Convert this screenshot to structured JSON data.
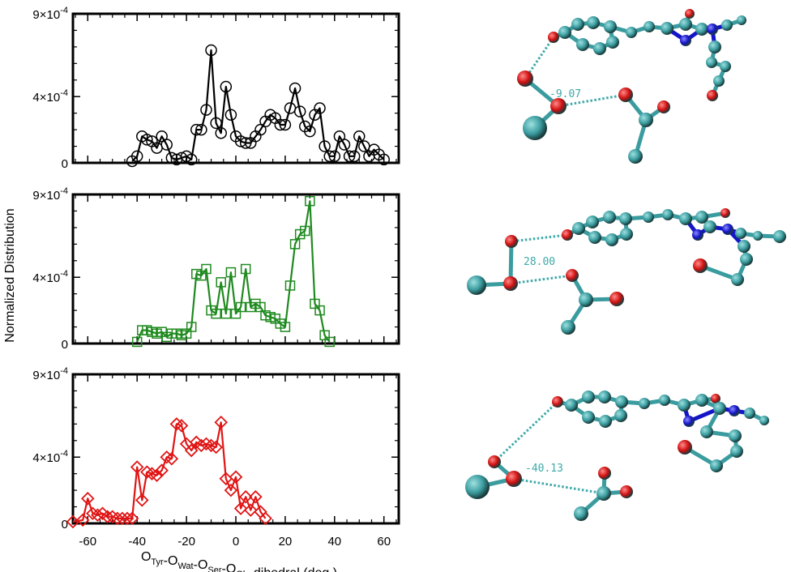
{
  "chart_data": {
    "type": "line",
    "ylabel": "Normalized Distribution",
    "xlabel": {
      "parts": [
        {
          "text": "O",
          "sub": "Tyr"
        },
        {
          "text": "-O",
          "sub": "Wat"
        },
        {
          "text": "-O",
          "sub": "Ser"
        },
        {
          "text": "-O",
          "sub": "Glu"
        },
        {
          "text": " dihedral (deg.)",
          "sub": ""
        }
      ]
    },
    "xlim": [
      -66,
      66
    ],
    "x_ticks": [
      "-60",
      "-40",
      "-20",
      "0",
      "20",
      "40",
      "60"
    ],
    "x_tick_values": [
      -60,
      -40,
      -20,
      0,
      20,
      40,
      60
    ],
    "ylim": [
      0,
      0.0009
    ],
    "y_tick_labels": [
      {
        "value": 0,
        "mantissa": "0",
        "exponent": ""
      },
      {
        "value": 0.0004,
        "mantissa": "4×10",
        "exponent": "-4"
      },
      {
        "value": 0.0009,
        "mantissa": "9×10",
        "exponent": "-4"
      }
    ],
    "panels": [
      {
        "color": "#000000",
        "marker": "circle",
        "x": [
          -42,
          -40,
          -38,
          -36,
          -34,
          -32,
          -30,
          -28,
          -26,
          -24,
          -22,
          -20,
          -18,
          -16,
          -14,
          -12,
          -10,
          -8,
          -6,
          -4,
          -2,
          0,
          2,
          4,
          6,
          8,
          10,
          12,
          14,
          16,
          18,
          20,
          22,
          24,
          26,
          28,
          30,
          32,
          34,
          36,
          38,
          40,
          42,
          44,
          46,
          48,
          50,
          52,
          54,
          56,
          58,
          60
        ],
        "y": [
          1e-05,
          4e-05,
          0.00016,
          0.00014,
          0.00013,
          9e-05,
          0.00016,
          0.00011,
          3e-05,
          2e-05,
          3e-05,
          4e-05,
          2e-05,
          0.0002,
          0.0002,
          0.00032,
          0.00068,
          0.00024,
          0.00018,
          0.00046,
          0.00029,
          0.00016,
          0.00013,
          0.00012,
          0.00012,
          0.00016,
          0.0002,
          0.00025,
          0.00029,
          0.00027,
          0.00023,
          0.00023,
          0.00033,
          0.00045,
          0.00031,
          0.00022,
          0.00019,
          0.00029,
          0.00033,
          0.0001,
          4e-05,
          4e-05,
          0.00016,
          0.00011,
          4e-05,
          4e-05,
          0.00016,
          0.0001,
          4e-05,
          8e-05,
          5e-05,
          2e-05
        ]
      },
      {
        "color": "#1f8a1f",
        "marker": "square",
        "x": [
          -40,
          -38,
          -36,
          -34,
          -32,
          -30,
          -28,
          -26,
          -24,
          -22,
          -20,
          -18,
          -16,
          -14,
          -12,
          -10,
          -8,
          -6,
          -4,
          -2,
          0,
          2,
          4,
          6,
          8,
          10,
          12,
          14,
          16,
          18,
          20,
          22,
          24,
          26,
          28,
          30,
          32,
          34,
          36,
          38
        ],
        "y": [
          1e-05,
          8e-05,
          8e-05,
          7e-05,
          6e-05,
          7e-05,
          4e-05,
          6e-05,
          6e-05,
          5e-05,
          6e-05,
          0.0001,
          0.00042,
          0.00041,
          0.00045,
          0.0002,
          0.00018,
          0.00037,
          0.00018,
          0.00043,
          0.00018,
          0.00022,
          0.00045,
          0.00022,
          0.00024,
          0.00022,
          0.00017,
          0.00016,
          0.00015,
          0.00012,
          0.0001,
          0.00035,
          0.0006,
          0.00066,
          0.00068,
          0.00086,
          0.00024,
          0.0002,
          5e-05,
          1e-05
        ]
      },
      {
        "color": "#e01414",
        "marker": "diamond",
        "x": [
          -66,
          -62,
          -60,
          -58,
          -56,
          -54,
          -52,
          -50,
          -48,
          -46,
          -44,
          -42,
          -40,
          -38,
          -36,
          -34,
          -32,
          -30,
          -28,
          -26,
          -24,
          -22,
          -20,
          -18,
          -16,
          -14,
          -12,
          -10,
          -8,
          -6,
          -4,
          -2,
          0,
          2,
          4,
          6,
          8,
          10,
          12
        ],
        "y": [
          1e-05,
          2e-05,
          0.00015,
          6e-05,
          5e-05,
          6e-05,
          4e-05,
          4e-05,
          3e-05,
          3e-05,
          3e-05,
          3e-05,
          0.00034,
          0.00014,
          0.00031,
          0.0003,
          0.00029,
          0.00032,
          0.0004,
          0.00039,
          0.0006,
          0.00059,
          0.00048,
          0.00044,
          0.00049,
          0.00047,
          0.00048,
          0.00047,
          0.00046,
          0.00061,
          0.00027,
          0.0002,
          0.00028,
          9e-05,
          0.00016,
          8e-05,
          0.00016,
          7e-05,
          3e-05
        ]
      }
    ],
    "annotations": [
      "-9.07",
      "28.00",
      "-40.13"
    ],
    "structure_colors": {
      "carbon": "#3a9c9f",
      "oxygen": "#d11010",
      "nitrogen": "#1414c8",
      "hbond": "#3fa9a9"
    }
  }
}
